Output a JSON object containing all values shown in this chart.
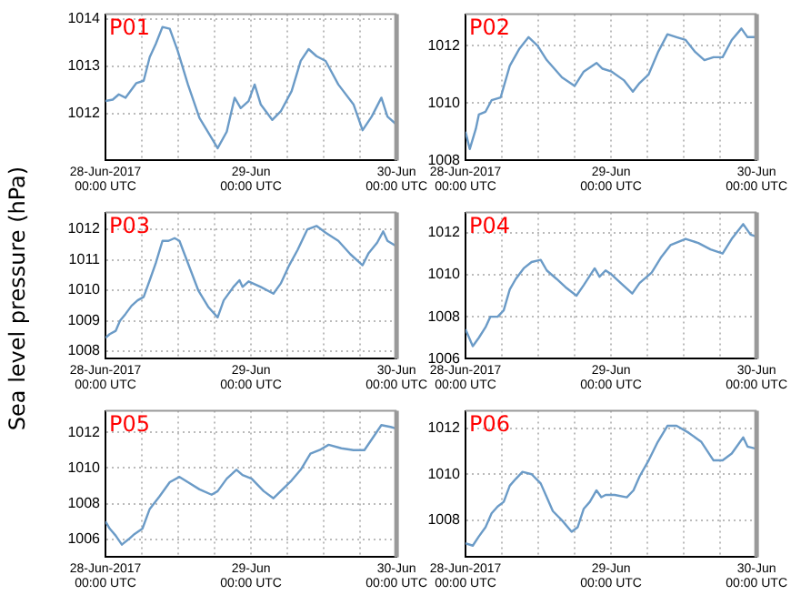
{
  "chart_data": [
    {
      "type": "line",
      "title": "P01",
      "grid": true,
      "xlim": [
        "2017-06-28T00:00",
        "2017-06-30T00:00"
      ],
      "ylim": [
        1011,
        1014.1
      ],
      "yticks": [
        1012,
        1013,
        1014
      ],
      "xticks": [
        {
          "value": "2017-06-28T00:00",
          "label": "28-Jun-2017\n00:00 UTC"
        },
        {
          "value": "2017-06-28T06:00",
          "label": null
        },
        {
          "value": "2017-06-28T12:00",
          "label": null
        },
        {
          "value": "2017-06-28T18:00",
          "label": null
        },
        {
          "value": "2017-06-29T00:00",
          "label": "29-Jun\n00:00 UTC"
        },
        {
          "value": "2017-06-29T06:00",
          "label": null
        },
        {
          "value": "2017-06-29T12:00",
          "label": null
        },
        {
          "value": "2017-06-29T18:00",
          "label": null
        },
        {
          "value": "2017-06-30T00:00",
          "label": "30-Jun\n00:00 UTC"
        }
      ],
      "x": [
        "2017-06-28T00:00",
        "2017-06-28T01:12",
        "2017-06-28T02:12",
        "2017-06-28T03:18",
        "2017-06-28T05:06",
        "2017-06-28T06:18",
        "2017-06-28T07:18",
        "2017-06-28T08:18",
        "2017-06-28T09:24",
        "2017-06-28T10:36",
        "2017-06-28T11:54",
        "2017-06-28T13:36",
        "2017-06-28T15:30",
        "2017-06-28T17:12",
        "2017-06-28T18:30",
        "2017-06-28T20:00",
        "2017-06-28T21:18",
        "2017-06-28T22:18",
        "2017-06-28T23:36",
        "2017-06-29T00:36",
        "2017-06-29T01:36",
        "2017-06-29T03:30",
        "2017-06-29T04:54",
        "2017-06-29T06:42",
        "2017-06-29T08:12",
        "2017-06-29T09:30",
        "2017-06-29T10:48",
        "2017-06-29T12:18",
        "2017-06-29T14:24",
        "2017-06-29T16:54",
        "2017-06-29T18:24",
        "2017-06-29T19:54",
        "2017-06-29T21:30",
        "2017-06-29T22:30",
        "2017-06-30T00:00"
      ],
      "series": [
        {
          "color": "#6b9bc7",
          "values": [
            1012.26,
            1012.29,
            1012.4,
            1012.33,
            1012.64,
            1012.69,
            1013.19,
            1013.47,
            1013.83,
            1013.79,
            1013.33,
            1012.61,
            1011.9,
            1011.54,
            1011.26,
            1011.61,
            1012.33,
            1012.11,
            1012.26,
            1012.61,
            1012.19,
            1011.86,
            1012.04,
            1012.47,
            1013.11,
            1013.36,
            1013.21,
            1013.11,
            1012.61,
            1012.19,
            1011.64,
            1011.93,
            1012.33,
            1011.93,
            1011.76
          ]
        }
      ]
    },
    {
      "type": "line",
      "title": "P02",
      "grid": true,
      "xlim": [
        "2017-06-28T00:00",
        "2017-06-30T00:00"
      ],
      "ylim": [
        1008,
        1013.1
      ],
      "yticks": [
        1008,
        1010,
        1012
      ],
      "xticks": [
        {
          "value": "2017-06-28T00:00",
          "label": "28-Jun-2017\n00:00 UTC"
        },
        {
          "value": "2017-06-28T06:00",
          "label": null
        },
        {
          "value": "2017-06-28T12:00",
          "label": null
        },
        {
          "value": "2017-06-28T18:00",
          "label": null
        },
        {
          "value": "2017-06-29T00:00",
          "label": "29-Jun\n00:00 UTC"
        },
        {
          "value": "2017-06-29T06:00",
          "label": null
        },
        {
          "value": "2017-06-29T12:00",
          "label": null
        },
        {
          "value": "2017-06-29T18:00",
          "label": null
        },
        {
          "value": "2017-06-30T00:00",
          "label": "30-Jun\n00:00 UTC"
        }
      ],
      "x": [
        "2017-06-28T00:00",
        "2017-06-28T00:42",
        "2017-06-28T01:42",
        "2017-06-28T02:12",
        "2017-06-28T03:18",
        "2017-06-28T04:18",
        "2017-06-28T05:48",
        "2017-06-28T07:18",
        "2017-06-28T08:54",
        "2017-06-28T10:24",
        "2017-06-28T11:54",
        "2017-06-28T13:24",
        "2017-06-28T15:54",
        "2017-06-28T18:00",
        "2017-06-28T19:30",
        "2017-06-28T21:36",
        "2017-06-28T22:36",
        "2017-06-29T00:06",
        "2017-06-29T02:06",
        "2017-06-29T03:36",
        "2017-06-29T04:42",
        "2017-06-29T06:12",
        "2017-06-29T07:48",
        "2017-06-29T09:18",
        "2017-06-29T10:48",
        "2017-06-29T12:18",
        "2017-06-29T13:48",
        "2017-06-29T15:24",
        "2017-06-29T16:54",
        "2017-06-29T18:24",
        "2017-06-29T19:54",
        "2017-06-29T21:30",
        "2017-06-29T22:30",
        "2017-06-30T00:00"
      ],
      "series": [
        {
          "color": "#6b9bc7",
          "values": [
            1009.0,
            1008.4,
            1009.1,
            1009.6,
            1009.7,
            1010.1,
            1010.2,
            1011.3,
            1011.9,
            1012.3,
            1012.0,
            1011.5,
            1010.9,
            1010.6,
            1011.1,
            1011.4,
            1011.2,
            1011.1,
            1010.8,
            1010.4,
            1010.7,
            1011.0,
            1011.8,
            1012.4,
            1012.3,
            1012.2,
            1011.8,
            1011.5,
            1011.6,
            1011.6,
            1012.2,
            1012.6,
            1012.3,
            1012.3
          ]
        }
      ]
    },
    {
      "type": "line",
      "title": "P03",
      "ylabel": "Sea level pressure (hPa)",
      "grid": true,
      "xlim": [
        "2017-06-28T00:00",
        "2017-06-30T00:00"
      ],
      "ylim": [
        1007.75,
        1012.55
      ],
      "yticks": [
        1008,
        1009,
        1010,
        1011,
        1012
      ],
      "xticks": [
        {
          "value": "2017-06-28T00:00",
          "label": "28-Jun-2017\n00:00 UTC"
        },
        {
          "value": "2017-06-28T06:00",
          "label": null
        },
        {
          "value": "2017-06-28T12:00",
          "label": null
        },
        {
          "value": "2017-06-28T18:00",
          "label": null
        },
        {
          "value": "2017-06-29T00:00",
          "label": "29-Jun\n00:00 UTC"
        },
        {
          "value": "2017-06-29T06:00",
          "label": null
        },
        {
          "value": "2017-06-29T12:00",
          "label": null
        },
        {
          "value": "2017-06-29T18:00",
          "label": null
        },
        {
          "value": "2017-06-30T00:00",
          "label": "30-Jun\n00:00 UTC"
        }
      ],
      "x": [
        "2017-06-28T00:00",
        "2017-06-28T00:42",
        "2017-06-28T01:42",
        "2017-06-28T02:24",
        "2017-06-28T03:18",
        "2017-06-28T04:18",
        "2017-06-28T05:18",
        "2017-06-28T06:18",
        "2017-06-28T07:18",
        "2017-06-28T08:18",
        "2017-06-28T09:24",
        "2017-06-28T10:24",
        "2017-06-28T11:24",
        "2017-06-28T12:12",
        "2017-06-28T13:36",
        "2017-06-28T15:18",
        "2017-06-28T17:00",
        "2017-06-28T18:30",
        "2017-06-28T19:30",
        "2017-06-28T21:06",
        "2017-06-28T22:06",
        "2017-06-28T22:36",
        "2017-06-28T23:36",
        "2017-06-29T01:36",
        "2017-06-29T03:42",
        "2017-06-29T04:54",
        "2017-06-29T06:12",
        "2017-06-29T07:42",
        "2017-06-29T09:18",
        "2017-06-29T10:48",
        "2017-06-29T12:18",
        "2017-06-29T14:24",
        "2017-06-29T16:24",
        "2017-06-29T18:24",
        "2017-06-29T19:24",
        "2017-06-29T20:48",
        "2017-06-29T21:48",
        "2017-06-29T22:30",
        "2017-06-30T00:00"
      ],
      "series": [
        {
          "color": "#6b9bc7",
          "values": [
            1008.44,
            1008.56,
            1008.67,
            1009,
            1009.22,
            1009.49,
            1009.67,
            1009.78,
            1010.33,
            1010.89,
            1011.62,
            1011.62,
            1011.71,
            1011.62,
            1010.89,
            1010,
            1009.44,
            1009.11,
            1009.67,
            1010.11,
            1010.33,
            1010.11,
            1010.29,
            1010.11,
            1009.89,
            1010.22,
            1010.78,
            1011.33,
            1012,
            1012.11,
            1011.89,
            1011.62,
            1011.18,
            1010.82,
            1011.22,
            1011.56,
            1011.93,
            1011.62,
            1011.44
          ]
        }
      ]
    },
    {
      "type": "line",
      "title": "P04",
      "grid": true,
      "xlim": [
        "2017-06-28T00:00",
        "2017-06-30T00:00"
      ],
      "ylim": [
        1006,
        1012.95
      ],
      "yticks": [
        1006,
        1008,
        1010,
        1012
      ],
      "xticks": [
        {
          "value": "2017-06-28T00:00",
          "label": "28-Jun-2017\n00:00 UTC"
        },
        {
          "value": "2017-06-28T06:00",
          "label": null
        },
        {
          "value": "2017-06-28T12:00",
          "label": null
        },
        {
          "value": "2017-06-28T18:00",
          "label": null
        },
        {
          "value": "2017-06-29T00:00",
          "label": "29-Jun\n00:00 UTC"
        },
        {
          "value": "2017-06-29T06:00",
          "label": null
        },
        {
          "value": "2017-06-29T12:00",
          "label": null
        },
        {
          "value": "2017-06-29T18:00",
          "label": null
        },
        {
          "value": "2017-06-30T00:00",
          "label": "30-Jun\n00:00 UTC"
        }
      ],
      "x": [
        "2017-06-28T00:00",
        "2017-06-28T01:12",
        "2017-06-28T02:12",
        "2017-06-28T03:18",
        "2017-06-28T04:06",
        "2017-06-28T05:18",
        "2017-06-28T06:18",
        "2017-06-28T07:18",
        "2017-06-28T08:18",
        "2017-06-28T09:36",
        "2017-06-28T10:54",
        "2017-06-28T12:24",
        "2017-06-28T13:24",
        "2017-06-28T15:00",
        "2017-06-28T16:30",
        "2017-06-28T18:18",
        "2017-06-28T19:30",
        "2017-06-28T21:18",
        "2017-06-28T22:06",
        "2017-06-28T23:06",
        "2017-06-29T00:06",
        "2017-06-29T01:36",
        "2017-06-29T03:30",
        "2017-06-29T04:42",
        "2017-06-29T06:42",
        "2017-06-29T08:12",
        "2017-06-29T09:48",
        "2017-06-29T12:18",
        "2017-06-29T14:24",
        "2017-06-29T16:24",
        "2017-06-29T18:24",
        "2017-06-29T19:54",
        "2017-06-29T21:48",
        "2017-06-29T23:00",
        "2017-06-30T00:00"
      ],
      "series": [
        {
          "color": "#6b9bc7",
          "values": [
            1007.4,
            1006.6,
            1007.0,
            1007.5,
            1008.0,
            1008.0,
            1008.3,
            1009.3,
            1009.8,
            1010.3,
            1010.6,
            1010.7,
            1010.2,
            1009.8,
            1009.4,
            1009.0,
            1009.5,
            1010.3,
            1009.9,
            1010.2,
            1010.0,
            1009.6,
            1009.1,
            1009.6,
            1010.1,
            1010.8,
            1011.4,
            1011.7,
            1011.5,
            1011.2,
            1011.0,
            1011.7,
            1012.4,
            1011.9,
            1011.8
          ]
        }
      ]
    },
    {
      "type": "line",
      "title": "P05",
      "grid": true,
      "xlim": [
        "2017-06-28T00:00",
        "2017-06-30T00:00"
      ],
      "ylim": [
        1005,
        1013.2
      ],
      "yticks": [
        1006,
        1008,
        1010,
        1012
      ],
      "xticks": [
        {
          "value": "2017-06-28T00:00",
          "label": "28-Jun-2017\n00:00 UTC"
        },
        {
          "value": "2017-06-28T06:00",
          "label": null
        },
        {
          "value": "2017-06-28T12:00",
          "label": null
        },
        {
          "value": "2017-06-28T18:00",
          "label": null
        },
        {
          "value": "2017-06-29T00:00",
          "label": "29-Jun\n00:00 UTC"
        },
        {
          "value": "2017-06-29T06:00",
          "label": null
        },
        {
          "value": "2017-06-29T12:00",
          "label": null
        },
        {
          "value": "2017-06-29T18:00",
          "label": null
        },
        {
          "value": "2017-06-30T00:00",
          "label": "30-Jun\n00:00 UTC"
        }
      ],
      "x": [
        "2017-06-28T00:00",
        "2017-06-28T00:42",
        "2017-06-28T01:42",
        "2017-06-28T02:42",
        "2017-06-28T03:48",
        "2017-06-28T04:48",
        "2017-06-28T06:06",
        "2017-06-28T07:18",
        "2017-06-28T08:54",
        "2017-06-28T10:36",
        "2017-06-28T12:12",
        "2017-06-28T13:36",
        "2017-06-28T15:30",
        "2017-06-28T17:30",
        "2017-06-28T18:30",
        "2017-06-28T20:00",
        "2017-06-28T21:36",
        "2017-06-28T22:36",
        "2017-06-29T00:06",
        "2017-06-29T02:06",
        "2017-06-29T03:42",
        "2017-06-29T05:12",
        "2017-06-29T06:42",
        "2017-06-29T08:12",
        "2017-06-29T09:48",
        "2017-06-29T11:18",
        "2017-06-29T12:48",
        "2017-06-29T14:54",
        "2017-06-29T16:54",
        "2017-06-29T18:42",
        "2017-06-29T19:54",
        "2017-06-29T21:30",
        "2017-06-29T23:00",
        "2017-06-30T00:00"
      ],
      "series": [
        {
          "color": "#6b9bc7",
          "values": [
            1007.0,
            1006.6,
            1006.2,
            1005.7,
            1006.0,
            1006.3,
            1006.6,
            1007.7,
            1008.4,
            1009.2,
            1009.5,
            1009.2,
            1008.8,
            1008.5,
            1008.7,
            1009.4,
            1009.9,
            1009.6,
            1009.4,
            1008.7,
            1008.3,
            1008.8,
            1009.3,
            1009.9,
            1010.8,
            1011.0,
            1011.3,
            1011.1,
            1011.0,
            1011.0,
            1011.6,
            1012.4,
            1012.3,
            1012.2
          ]
        }
      ]
    },
    {
      "type": "line",
      "title": "P06",
      "grid": true,
      "xlim": [
        "2017-06-28T00:00",
        "2017-06-30T00:00"
      ],
      "ylim": [
        1006.4,
        1012.75
      ],
      "yticks": [
        1008,
        1010,
        1012
      ],
      "xticks": [
        {
          "value": "2017-06-28T00:00",
          "label": "28-Jun-2017\n00:00 UTC"
        },
        {
          "value": "2017-06-28T06:00",
          "label": null
        },
        {
          "value": "2017-06-28T12:00",
          "label": null
        },
        {
          "value": "2017-06-28T18:00",
          "label": null
        },
        {
          "value": "2017-06-29T00:00",
          "label": "29-Jun\n00:00 UTC"
        },
        {
          "value": "2017-06-29T06:00",
          "label": null
        },
        {
          "value": "2017-06-29T12:00",
          "label": null
        },
        {
          "value": "2017-06-29T18:00",
          "label": null
        },
        {
          "value": "2017-06-30T00:00",
          "label": "30-Jun\n00:00 UTC"
        }
      ],
      "x": [
        "2017-06-28T00:00",
        "2017-06-28T01:12",
        "2017-06-28T02:12",
        "2017-06-28T03:18",
        "2017-06-28T04:18",
        "2017-06-28T05:18",
        "2017-06-28T06:18",
        "2017-06-28T07:18",
        "2017-06-28T08:18",
        "2017-06-28T09:24",
        "2017-06-28T10:54",
        "2017-06-28T12:24",
        "2017-06-28T13:24",
        "2017-06-28T14:24",
        "2017-06-28T15:54",
        "2017-06-28T17:30",
        "2017-06-28T18:30",
        "2017-06-28T19:30",
        "2017-06-28T20:30",
        "2017-06-28T21:36",
        "2017-06-28T22:24",
        "2017-06-28T23:06",
        "2017-06-29T00:36",
        "2017-06-29T02:36",
        "2017-06-29T03:42",
        "2017-06-29T04:42",
        "2017-06-29T06:12",
        "2017-06-29T07:42",
        "2017-06-29T09:18",
        "2017-06-29T10:48",
        "2017-06-29T12:48",
        "2017-06-29T14:54",
        "2017-06-29T16:54",
        "2017-06-29T18:24",
        "2017-06-29T19:54",
        "2017-06-29T21:48",
        "2017-06-29T22:30",
        "2017-06-30T00:00"
      ],
      "series": [
        {
          "color": "#6b9bc7",
          "values": [
            1007.0,
            1006.9,
            1007.3,
            1007.7,
            1008.3,
            1008.6,
            1008.8,
            1009.5,
            1009.8,
            1010.1,
            1010.0,
            1009.6,
            1009.0,
            1008.4,
            1008.0,
            1007.5,
            1007.7,
            1008.5,
            1008.8,
            1009.3,
            1009.0,
            1009.1,
            1009.1,
            1009.0,
            1009.3,
            1009.9,
            1010.6,
            1011.4,
            1012.1,
            1012.1,
            1011.8,
            1011.4,
            1010.6,
            1010.6,
            1010.9,
            1011.6,
            1011.2,
            1011.1
          ]
        }
      ]
    }
  ]
}
